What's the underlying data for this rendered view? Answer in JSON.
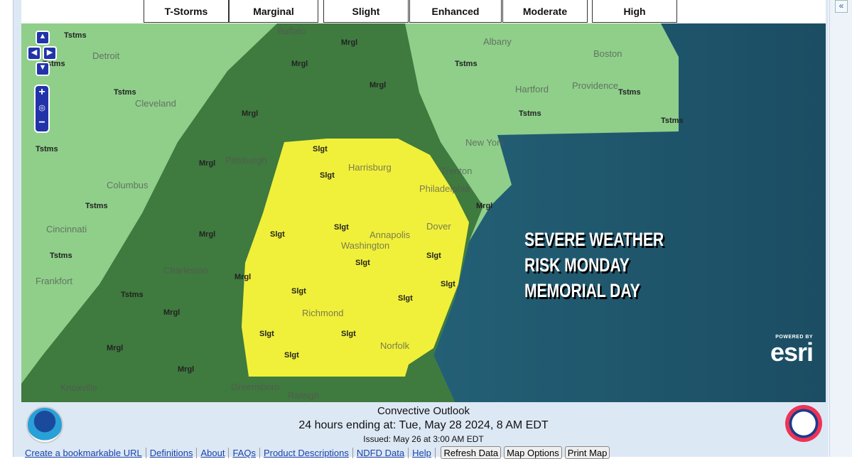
{
  "legend": [
    {
      "label": "T-Storms",
      "color": "#99d795"
    },
    {
      "label": "Marginal",
      "color": "#5d9a5d"
    },
    {
      "label": "Slight",
      "color": "#ffff33"
    },
    {
      "label": "Enhanced",
      "color": "#ff8a2a"
    },
    {
      "label": "Moderate",
      "color": "#ff2a2a"
    },
    {
      "label": "High",
      "color": "#ff33ff"
    }
  ],
  "collapse_icon": "«",
  "map": {
    "cities": [
      "Buffalo",
      "Detroit",
      "Albany",
      "Boston",
      "Hartford",
      "Providence",
      "Cleveland",
      "Pittsburgh",
      "Harrisburg",
      "New York",
      "Trenton",
      "Philadelphia",
      "Columbus",
      "Cincinnati",
      "Dover",
      "Annapolis",
      "Washington",
      "Charleston",
      "Frankfort",
      "Richmond",
      "Norfolk",
      "Knoxville",
      "Greensboro",
      "Raleigh"
    ],
    "risk_labels": {
      "tstms": "Tstms",
      "mrgl": "Mrgl",
      "slgt": "Slgt"
    },
    "banner": [
      "SEVERE WEATHER",
      "RISK MONDAY",
      "MEMORIAL DAY"
    ],
    "attribution": {
      "powered": "POWERED BY",
      "brand": "esri"
    },
    "controls": {
      "zoom_in": "+",
      "zoom_out": "−"
    }
  },
  "footer": {
    "title": "Convective Outlook",
    "valid": "24 hours ending at: Tue, May 28 2024,   8 AM EDT",
    "issued": "Issued: May 26 at 3:00 AM EDT"
  },
  "links": [
    "Create a bookmarkable URL",
    "Definitions",
    "About",
    "FAQs",
    "Product Descriptions",
    "NDFD Data",
    "Help"
  ],
  "buttons": [
    "Refresh Data",
    "Map Options",
    "Print Map"
  ]
}
